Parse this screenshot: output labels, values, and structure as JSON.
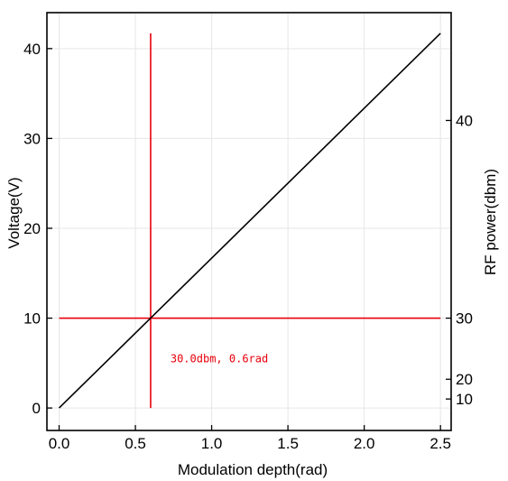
{
  "chart_data": {
    "type": "line",
    "title": "",
    "xlabel": "Modulation depth(rad)",
    "ylabel": "Voltage(V)",
    "y2label": "RF power(dbm)",
    "xlim": [
      -0.08,
      2.57
    ],
    "ylim": [
      -2.5,
      44
    ],
    "xticks": [
      0.0,
      0.5,
      1.0,
      1.5,
      2.0,
      2.5
    ],
    "xtick_labels": [
      "0.0",
      "0.5",
      "1.0",
      "1.5",
      "2.0",
      "2.5"
    ],
    "yticks": [
      0,
      10,
      20,
      30,
      40
    ],
    "ytick_labels": [
      "0",
      "10",
      "20",
      "30",
      "40"
    ],
    "y2ticks": [
      {
        "label": "40",
        "voltage": 32
      },
      {
        "label": "30",
        "voltage": 10
      },
      {
        "label": "20",
        "voltage": 3.2
      },
      {
        "label": "10",
        "voltage": 1.0
      }
    ],
    "grid": true,
    "series": [
      {
        "x": [
          0.0,
          2.5
        ],
        "y": [
          0.0,
          41.7
        ],
        "color": "#000000"
      }
    ],
    "guides": {
      "vertical": {
        "x": 0.6,
        "y": [
          0.0,
          41.7
        ],
        "color": "#e8000b"
      },
      "horizontal": {
        "y": 10.0,
        "x": [
          0.0,
          2.5
        ],
        "color": "#e8000b"
      }
    },
    "annotation": {
      "text": "30.0dbm, 0.6rad",
      "x": 1.05,
      "y": 5.5,
      "color": "#e8000b"
    }
  }
}
